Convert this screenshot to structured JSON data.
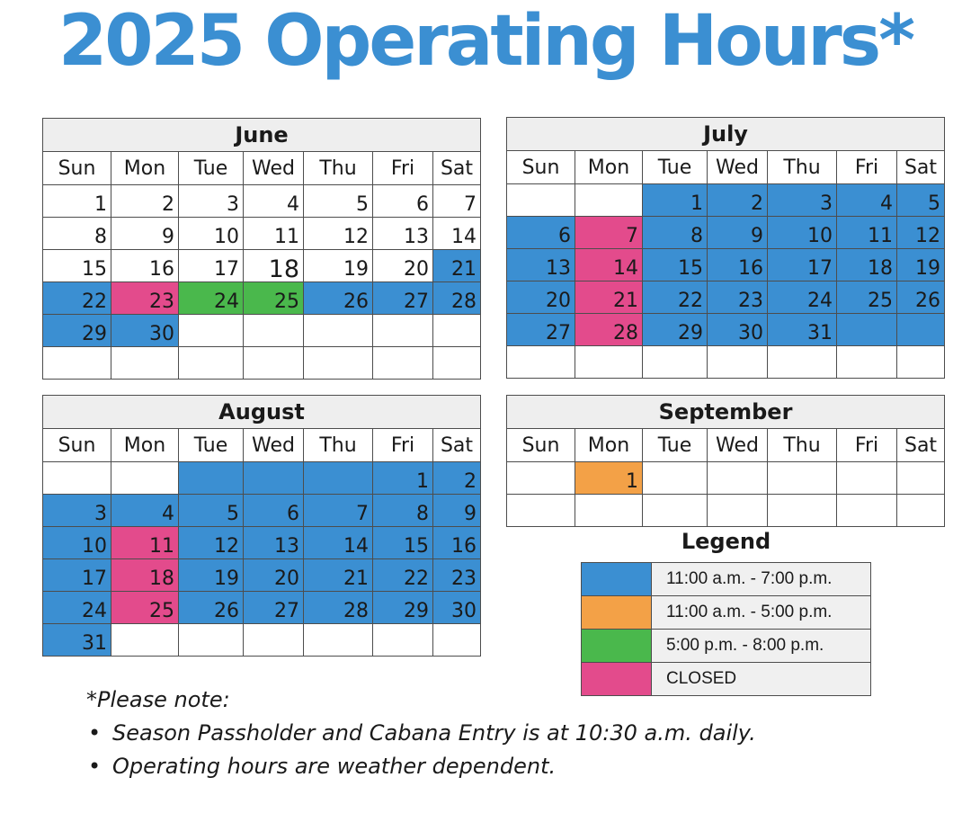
{
  "title": "2025 Operating Hours*",
  "day_names": [
    "Sun",
    "Mon",
    "Tue",
    "Wed",
    "Thu",
    "Fri",
    "Sat"
  ],
  "colors": {
    "blue": "#3b8fd2",
    "orange": "#f3a147",
    "green": "#4ab84c",
    "pink": "#e34b8c"
  },
  "calendars": [
    {
      "name": "June",
      "weeks": [
        [
          {
            "d": "1",
            "c": "white"
          },
          {
            "d": "2",
            "c": "white"
          },
          {
            "d": "3",
            "c": "white"
          },
          {
            "d": "4",
            "c": "white"
          },
          {
            "d": "5",
            "c": "white"
          },
          {
            "d": "6",
            "c": "white"
          },
          {
            "d": "7",
            "c": "white"
          }
        ],
        [
          {
            "d": "8",
            "c": "white"
          },
          {
            "d": "9",
            "c": "white"
          },
          {
            "d": "10",
            "c": "white"
          },
          {
            "d": "11",
            "c": "white"
          },
          {
            "d": "12",
            "c": "white"
          },
          {
            "d": "13",
            "c": "white"
          },
          {
            "d": "14",
            "c": "white"
          }
        ],
        [
          {
            "d": "15",
            "c": "white"
          },
          {
            "d": "16",
            "c": "white"
          },
          {
            "d": "17",
            "c": "white"
          },
          {
            "d": "18",
            "c": "white",
            "big": true
          },
          {
            "d": "19",
            "c": "white"
          },
          {
            "d": "20",
            "c": "white"
          },
          {
            "d": "21",
            "c": "blue"
          }
        ],
        [
          {
            "d": "22",
            "c": "blue"
          },
          {
            "d": "23",
            "c": "pink"
          },
          {
            "d": "24",
            "c": "green"
          },
          {
            "d": "25",
            "c": "green"
          },
          {
            "d": "26",
            "c": "blue"
          },
          {
            "d": "27",
            "c": "blue"
          },
          {
            "d": "28",
            "c": "blue"
          }
        ],
        [
          {
            "d": "29",
            "c": "blue"
          },
          {
            "d": "30",
            "c": "blue"
          },
          {
            "d": "",
            "c": "white"
          },
          {
            "d": "",
            "c": "white"
          },
          {
            "d": "",
            "c": "white"
          },
          {
            "d": "",
            "c": "white"
          },
          {
            "d": "",
            "c": "white"
          }
        ],
        [
          {
            "d": "",
            "c": "white"
          },
          {
            "d": "",
            "c": "white"
          },
          {
            "d": "",
            "c": "white"
          },
          {
            "d": "",
            "c": "white"
          },
          {
            "d": "",
            "c": "white"
          },
          {
            "d": "",
            "c": "white"
          },
          {
            "d": "",
            "c": "white"
          }
        ]
      ]
    },
    {
      "name": "July",
      "weeks": [
        [
          {
            "d": "",
            "c": "white"
          },
          {
            "d": "",
            "c": "white"
          },
          {
            "d": "1",
            "c": "blue"
          },
          {
            "d": "2",
            "c": "blue"
          },
          {
            "d": "3",
            "c": "blue"
          },
          {
            "d": "4",
            "c": "blue"
          },
          {
            "d": "5",
            "c": "blue"
          }
        ],
        [
          {
            "d": "6",
            "c": "blue"
          },
          {
            "d": "7",
            "c": "pink"
          },
          {
            "d": "8",
            "c": "blue"
          },
          {
            "d": "9",
            "c": "blue"
          },
          {
            "d": "10",
            "c": "blue"
          },
          {
            "d": "11",
            "c": "blue"
          },
          {
            "d": "12",
            "c": "blue"
          }
        ],
        [
          {
            "d": "13",
            "c": "blue"
          },
          {
            "d": "14",
            "c": "pink"
          },
          {
            "d": "15",
            "c": "blue"
          },
          {
            "d": "16",
            "c": "blue"
          },
          {
            "d": "17",
            "c": "blue"
          },
          {
            "d": "18",
            "c": "blue"
          },
          {
            "d": "19",
            "c": "blue"
          }
        ],
        [
          {
            "d": "20",
            "c": "blue"
          },
          {
            "d": "21",
            "c": "pink"
          },
          {
            "d": "22",
            "c": "blue"
          },
          {
            "d": "23",
            "c": "blue"
          },
          {
            "d": "24",
            "c": "blue"
          },
          {
            "d": "25",
            "c": "blue"
          },
          {
            "d": "26",
            "c": "blue"
          }
        ],
        [
          {
            "d": "27",
            "c": "blue"
          },
          {
            "d": "28",
            "c": "pink"
          },
          {
            "d": "29",
            "c": "blue"
          },
          {
            "d": "30",
            "c": "blue"
          },
          {
            "d": "31",
            "c": "blue"
          },
          {
            "d": "",
            "c": "blue"
          },
          {
            "d": "",
            "c": "blue"
          }
        ],
        [
          {
            "d": "",
            "c": "white"
          },
          {
            "d": "",
            "c": "white"
          },
          {
            "d": "",
            "c": "white"
          },
          {
            "d": "",
            "c": "white"
          },
          {
            "d": "",
            "c": "white"
          },
          {
            "d": "",
            "c": "white"
          },
          {
            "d": "",
            "c": "white"
          }
        ]
      ]
    },
    {
      "name": "August",
      "weeks": [
        [
          {
            "d": "",
            "c": "white"
          },
          {
            "d": "",
            "c": "white"
          },
          {
            "d": "",
            "c": "blue"
          },
          {
            "d": "",
            "c": "blue"
          },
          {
            "d": "",
            "c": "blue"
          },
          {
            "d": "1",
            "c": "blue"
          },
          {
            "d": "2",
            "c": "blue"
          }
        ],
        [
          {
            "d": "3",
            "c": "blue"
          },
          {
            "d": "4",
            "c": "blue"
          },
          {
            "d": "5",
            "c": "blue"
          },
          {
            "d": "6",
            "c": "blue"
          },
          {
            "d": "7",
            "c": "blue"
          },
          {
            "d": "8",
            "c": "blue"
          },
          {
            "d": "9",
            "c": "blue"
          }
        ],
        [
          {
            "d": "10",
            "c": "blue"
          },
          {
            "d": "11",
            "c": "pink"
          },
          {
            "d": "12",
            "c": "blue"
          },
          {
            "d": "13",
            "c": "blue"
          },
          {
            "d": "14",
            "c": "blue"
          },
          {
            "d": "15",
            "c": "blue"
          },
          {
            "d": "16",
            "c": "blue"
          }
        ],
        [
          {
            "d": "17",
            "c": "blue"
          },
          {
            "d": "18",
            "c": "pink"
          },
          {
            "d": "19",
            "c": "blue"
          },
          {
            "d": "20",
            "c": "blue"
          },
          {
            "d": "21",
            "c": "blue"
          },
          {
            "d": "22",
            "c": "blue"
          },
          {
            "d": "23",
            "c": "blue"
          }
        ],
        [
          {
            "d": "24",
            "c": "blue"
          },
          {
            "d": "25",
            "c": "pink"
          },
          {
            "d": "26",
            "c": "blue"
          },
          {
            "d": "27",
            "c": "blue"
          },
          {
            "d": "28",
            "c": "blue"
          },
          {
            "d": "29",
            "c": "blue"
          },
          {
            "d": "30",
            "c": "blue"
          }
        ],
        [
          {
            "d": "31",
            "c": "blue"
          },
          {
            "d": "",
            "c": "white"
          },
          {
            "d": "",
            "c": "white"
          },
          {
            "d": "",
            "c": "white"
          },
          {
            "d": "",
            "c": "white"
          },
          {
            "d": "",
            "c": "white"
          },
          {
            "d": "",
            "c": "white"
          }
        ]
      ]
    },
    {
      "name": "September",
      "weeks": [
        [
          {
            "d": "",
            "c": "white"
          },
          {
            "d": "1",
            "c": "orange"
          },
          {
            "d": "",
            "c": "white"
          },
          {
            "d": "",
            "c": "white"
          },
          {
            "d": "",
            "c": "white"
          },
          {
            "d": "",
            "c": "white"
          },
          {
            "d": "",
            "c": "white"
          }
        ],
        [
          {
            "d": "",
            "c": "white"
          },
          {
            "d": "",
            "c": "white"
          },
          {
            "d": "",
            "c": "white"
          },
          {
            "d": "",
            "c": "white"
          },
          {
            "d": "",
            "c": "white"
          },
          {
            "d": "",
            "c": "white"
          },
          {
            "d": "",
            "c": "white"
          }
        ]
      ]
    }
  ],
  "legend": {
    "title": "Legend",
    "items": [
      {
        "color": "blue",
        "label": "11:00 a.m. - 7:00 p.m."
      },
      {
        "color": "orange",
        "label": "11:00 a.m. - 5:00 p.m."
      },
      {
        "color": "green",
        "label": "5:00 p.m. - 8:00 p.m."
      },
      {
        "color": "pink",
        "label": "CLOSED"
      }
    ]
  },
  "notes": {
    "heading": "*Please note:",
    "bullet_char": "•",
    "items": [
      "Season Passholder and Cabana Entry is at 10:30 a.m. daily.",
      "Operating hours are weather dependent."
    ]
  }
}
